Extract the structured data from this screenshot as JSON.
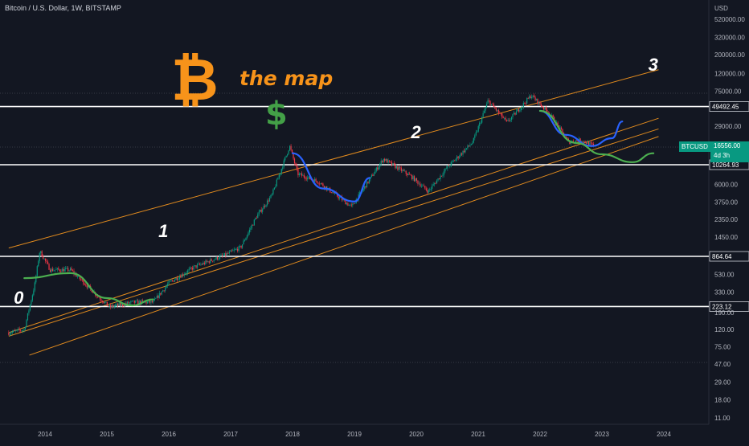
{
  "header": {
    "title": "Bitcoin / U.S. Dollar, 1W, BITSTAMP"
  },
  "price_scale": {
    "currency": "USD"
  },
  "ticker": {
    "label": "BTCUSD",
    "price": "16556.00",
    "countdown": "4d 3h"
  },
  "overlay": {
    "text": "the map",
    "bitcoin_symbol": "₿",
    "dollar_symbol": "$"
  },
  "colors": {
    "background": "#131722",
    "up": "#089981",
    "down": "#f23645",
    "channel": "#e08a1e",
    "level_line": "#ffffff",
    "path_green": "#4caf50",
    "path_blue": "#2962ff",
    "bitcoin_orange": "#f7931a",
    "dollar_green": "#43a047"
  },
  "chart_data": {
    "type": "line",
    "title": "Bitcoin / U.S. Dollar, 1W, BITSTAMP",
    "xlabel": "",
    "ylabel": "",
    "y_scale": "log",
    "x_range": [
      "2013-06-01",
      "2025-01-01"
    ],
    "x_ticks": [
      "2014",
      "2015",
      "2016",
      "2017",
      "2018",
      "2019",
      "2020",
      "2021",
      "2022",
      "2023",
      "2024"
    ],
    "y_ticks": [
      "520000.00",
      "320000.00",
      "200000.00",
      "120000.00",
      "75000.00",
      "29000.00",
      "6000.00",
      "3750.00",
      "2350.00",
      "1450.00",
      "530.00",
      "330.00",
      "190.00",
      "120.00",
      "75.00",
      "47.00",
      "29.00",
      "18.00",
      "11.00"
    ],
    "horizontal_levels": [
      "49492.45",
      "10264.93",
      "864.64",
      "223.12"
    ],
    "wave_labels": [
      "0",
      "1",
      "2",
      "3"
    ],
    "price_path": [
      [
        "2013-06-01",
        110
      ],
      [
        "2013-09-01",
        120
      ],
      [
        "2013-11-01",
        400
      ],
      [
        "2013-12-01",
        1000
      ],
      [
        "2014-02-01",
        600
      ],
      [
        "2014-06-01",
        600
      ],
      [
        "2014-09-01",
        400
      ],
      [
        "2015-01-15",
        220
      ],
      [
        "2015-06-01",
        250
      ],
      [
        "2015-10-01",
        250
      ],
      [
        "2016-01-01",
        420
      ],
      [
        "2016-06-01",
        650
      ],
      [
        "2016-12-01",
        900
      ],
      [
        "2017-03-01",
        1100
      ],
      [
        "2017-06-01",
        2500
      ],
      [
        "2017-09-01",
        4500
      ],
      [
        "2017-12-15",
        17000
      ],
      [
        "2018-02-01",
        8000
      ],
      [
        "2018-06-01",
        6500
      ],
      [
        "2018-12-15",
        3300
      ],
      [
        "2019-06-20",
        12000
      ],
      [
        "2019-12-01",
        7500
      ],
      [
        "2020-03-12",
        5000
      ],
      [
        "2020-07-01",
        9500
      ],
      [
        "2020-12-01",
        19000
      ],
      [
        "2021-03-01",
        58000
      ],
      [
        "2021-06-20",
        32000
      ],
      [
        "2021-11-10",
        67000
      ],
      [
        "2022-03-01",
        40000
      ],
      [
        "2022-06-18",
        19000
      ],
      [
        "2022-09-01",
        20000
      ],
      [
        "2022-11-25",
        16556
      ]
    ],
    "channel_lines": [
      [
        [
          "2013-06-01",
          1083
        ],
        [
          "2023-12-01",
          133659
        ]
      ],
      [
        [
          "2013-06-01",
          110
        ],
        [
          "2023-12-01",
          36000
        ]
      ],
      [
        [
          "2013-06-01",
          100
        ],
        [
          "2023-12-01",
          27000
        ]
      ],
      [
        [
          "2013-10-01",
          60
        ],
        [
          "2023-12-01",
          22000
        ]
      ]
    ],
    "projected_paths": [
      {
        "color": "green",
        "points": [
          [
            "2013-09-01",
            480
          ],
          [
            "2014-06-01",
            550
          ],
          [
            "2015-01-01",
            280
          ],
          [
            "2015-06-01",
            230
          ],
          [
            "2015-10-01",
            270
          ]
        ]
      },
      {
        "color": "blue",
        "points": [
          [
            "2018-01-01",
            14000
          ],
          [
            "2018-07-01",
            5400
          ],
          [
            "2019-01-01",
            3800
          ],
          [
            "2019-04-01",
            7200
          ]
        ]
      },
      {
        "color": "blue",
        "points": [
          [
            "2022-01-01",
            44000
          ],
          [
            "2022-06-01",
            23000
          ],
          [
            "2022-11-01",
            17000
          ],
          [
            "2023-03-01",
            21000
          ],
          [
            "2023-05-01",
            33000
          ]
        ]
      },
      {
        "color": "green",
        "points": [
          [
            "2022-01-01",
            44000
          ],
          [
            "2022-08-01",
            18500
          ],
          [
            "2023-01-01",
            13600
          ],
          [
            "2023-07-01",
            11000
          ],
          [
            "2023-11-01",
            14000
          ]
        ]
      }
    ]
  }
}
